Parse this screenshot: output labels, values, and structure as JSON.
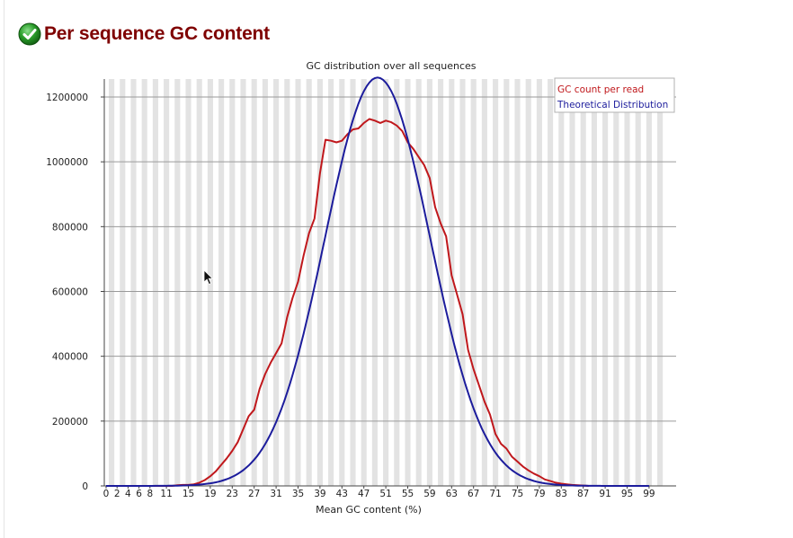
{
  "page": {
    "heading": "Per sequence GC content",
    "status_icon": "pass-check-icon",
    "status_color": "#2a9d2a"
  },
  "chart_data": {
    "type": "line",
    "title": "GC distribution over all sequences",
    "xlabel": "Mean GC content (%)",
    "ylabel": "",
    "xlim": [
      0,
      100
    ],
    "ylim": [
      0,
      1260000
    ],
    "yticks": [
      0,
      200000,
      400000,
      600000,
      800000,
      1000000,
      1200000
    ],
    "ytick_labels": [
      "0",
      "200000",
      "400000",
      "600000",
      "800000",
      "1000000",
      "1200000"
    ],
    "xtick_labels": [
      "0",
      "2",
      "4",
      "6",
      "8",
      "11",
      "15",
      "19",
      "23",
      "27",
      "31",
      "35",
      "39",
      "43",
      "47",
      "51",
      "55",
      "59",
      "63",
      "67",
      "71",
      "75",
      "79",
      "83",
      "87",
      "91",
      "95",
      "99"
    ],
    "xtick_values": [
      0,
      2,
      4,
      6,
      8,
      11,
      15,
      19,
      23,
      27,
      31,
      35,
      39,
      43,
      47,
      51,
      55,
      59,
      63,
      67,
      71,
      75,
      79,
      83,
      87,
      91,
      95,
      99
    ],
    "grid": true,
    "alternating_band_color": "#e3e3e3",
    "legend_position": "top-right",
    "series": [
      {
        "name": "GC count per read",
        "color": "#c0181c",
        "points": [
          [
            0,
            0
          ],
          [
            8,
            0
          ],
          [
            10,
            0
          ],
          [
            12,
            0
          ],
          [
            13,
            2000
          ],
          [
            14,
            3000
          ],
          [
            15,
            3000
          ],
          [
            16,
            5000
          ],
          [
            17,
            10000
          ],
          [
            18,
            18000
          ],
          [
            19,
            30000
          ],
          [
            20,
            45000
          ],
          [
            21,
            65000
          ],
          [
            22,
            85000
          ],
          [
            23,
            108000
          ],
          [
            24,
            135000
          ],
          [
            25,
            175000
          ],
          [
            26,
            215000
          ],
          [
            27,
            235000
          ],
          [
            28,
            300000
          ],
          [
            29,
            345000
          ],
          [
            30,
            380000
          ],
          [
            31,
            410000
          ],
          [
            32,
            440000
          ],
          [
            33,
            520000
          ],
          [
            34,
            580000
          ],
          [
            35,
            630000
          ],
          [
            36,
            710000
          ],
          [
            37,
            780000
          ],
          [
            38,
            825000
          ],
          [
            39,
            965000
          ],
          [
            40,
            1068000
          ],
          [
            41,
            1065000
          ],
          [
            42,
            1060000
          ],
          [
            43,
            1065000
          ],
          [
            44,
            1085000
          ],
          [
            45,
            1100000
          ],
          [
            46,
            1103000
          ],
          [
            47,
            1120000
          ],
          [
            48,
            1132000
          ],
          [
            49,
            1127000
          ],
          [
            50,
            1120000
          ],
          [
            51,
            1127000
          ],
          [
            52,
            1122000
          ],
          [
            53,
            1112000
          ],
          [
            54,
            1095000
          ],
          [
            55,
            1060000
          ],
          [
            56,
            1040000
          ],
          [
            57,
            1015000
          ],
          [
            58,
            990000
          ],
          [
            59,
            950000
          ],
          [
            60,
            860000
          ],
          [
            61,
            810000
          ],
          [
            62,
            770000
          ],
          [
            63,
            650000
          ],
          [
            64,
            590000
          ],
          [
            65,
            530000
          ],
          [
            66,
            420000
          ],
          [
            67,
            360000
          ],
          [
            68,
            310000
          ],
          [
            69,
            260000
          ],
          [
            70,
            220000
          ],
          [
            71,
            160000
          ],
          [
            72,
            130000
          ],
          [
            73,
            115000
          ],
          [
            74,
            90000
          ],
          [
            75,
            75000
          ],
          [
            76,
            60000
          ],
          [
            77,
            48000
          ],
          [
            78,
            38000
          ],
          [
            79,
            30000
          ],
          [
            80,
            20000
          ],
          [
            81,
            15000
          ],
          [
            82,
            10000
          ],
          [
            83,
            7000
          ],
          [
            84,
            5000
          ],
          [
            85,
            3000
          ],
          [
            86,
            2000
          ],
          [
            87,
            1000
          ],
          [
            88,
            0
          ],
          [
            100,
            0
          ]
        ]
      },
      {
        "name": "Theoretical Distribution",
        "color": "#1c1c9c",
        "curve": "gaussian",
        "mean": 49.5,
        "sd": 9.6,
        "peak": 1260000
      }
    ]
  }
}
